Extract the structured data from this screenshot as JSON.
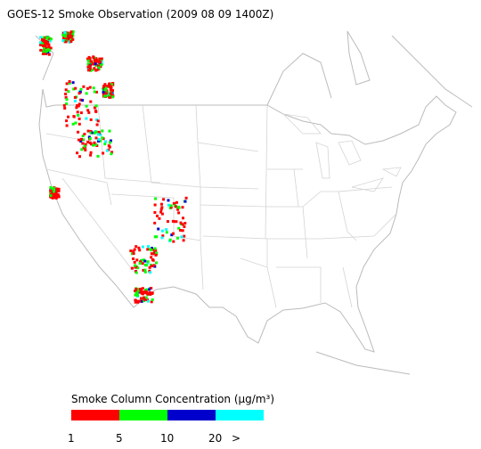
{
  "title": "GOES-12 Smoke Observation (2009 08 09  1400Z)",
  "legend": {
    "title": "Smoke Column Concentration (μg/m³)",
    "colors": [
      "#ff0000",
      "#00ff00",
      "#0000cc",
      "#00ffff"
    ],
    "labels": [
      "1",
      "5",
      "10",
      "20",
      ">"
    ]
  }
}
